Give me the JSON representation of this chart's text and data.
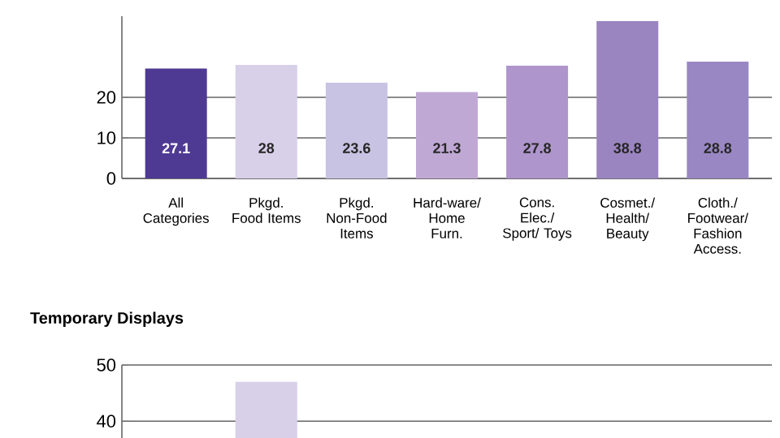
{
  "chart_data": [
    {
      "type": "bar",
      "categories": [
        "All Categories",
        "Pkgd. Food Items",
        "Pkgd. Non-Food Items",
        "Hard-ware/ Home Furn.",
        "Cons. Elec./ Sport/ Toys",
        "Cosmet./ Health/ Beauty",
        "Cloth./ Footwear/ Fashion Access."
      ],
      "values": [
        27.1,
        28,
        23.6,
        21.3,
        27.8,
        38.8,
        28.8
      ],
      "colors": [
        "#4f3a93",
        "#d8cfe8",
        "#c8c3e3",
        "#c0a8d4",
        "#ae95cc",
        "#9a85c0",
        "#9987c4"
      ],
      "ylim": [
        0,
        40
      ],
      "yticks": [
        0,
        10,
        20
      ],
      "grid": "y",
      "data_labels": true
    },
    {
      "type": "bar",
      "title": "Temporary Displays",
      "categories": [
        null,
        null,
        null,
        null,
        null,
        null,
        null
      ],
      "values": [
        null,
        47,
        null,
        null,
        null,
        null,
        null
      ],
      "colors": [
        "#4f3a93",
        "#d8cfe8",
        "#c8c3e3",
        "#c0a8d4",
        "#ae95cc",
        "#9a85c0",
        "#9987c4"
      ],
      "ylim": [
        37,
        50
      ],
      "yticks": [
        40,
        50
      ],
      "grid": "y"
    }
  ]
}
